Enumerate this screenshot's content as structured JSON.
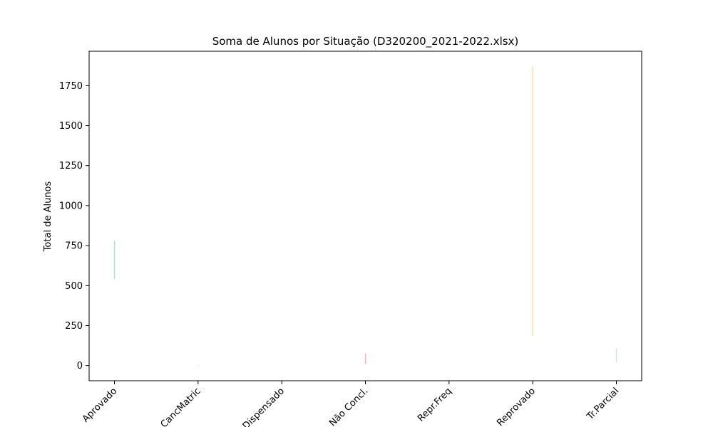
{
  "chart_data": {
    "type": "scatter",
    "title": "Soma de Alunos por Situação (D320200_2021-2022.xlsx)",
    "xlabel": "",
    "ylabel": "Total de Alunos",
    "categories": [
      "Aprovado",
      "CancMatric",
      "Dispensado",
      "Não Concl.",
      "Repr.Freq",
      "Reprovado",
      "Tr.Parcial"
    ],
    "yticks": [
      0,
      250,
      500,
      750,
      1000,
      1250,
      1500,
      1750
    ],
    "ylim": [
      -95,
      1965
    ],
    "grid": false,
    "legend": "none",
    "series": [
      {
        "ranges": [
          {
            "category": "Aprovado",
            "low": 540,
            "high": 780,
            "color": "#8fd1c4"
          },
          {
            "category": "CancMatric",
            "low": 0,
            "high": 4,
            "color": "#f2a6a6"
          },
          {
            "category": "Não Concl.",
            "low": 8,
            "high": 75,
            "color": "#f29aa8"
          },
          {
            "category": "Reprovado",
            "low": 185,
            "high": 1870,
            "color": "#f7cf9c"
          },
          {
            "category": "Tr.Parcial",
            "low": 18,
            "high": 105,
            "color": "#b9e3d8"
          }
        ]
      }
    ]
  }
}
